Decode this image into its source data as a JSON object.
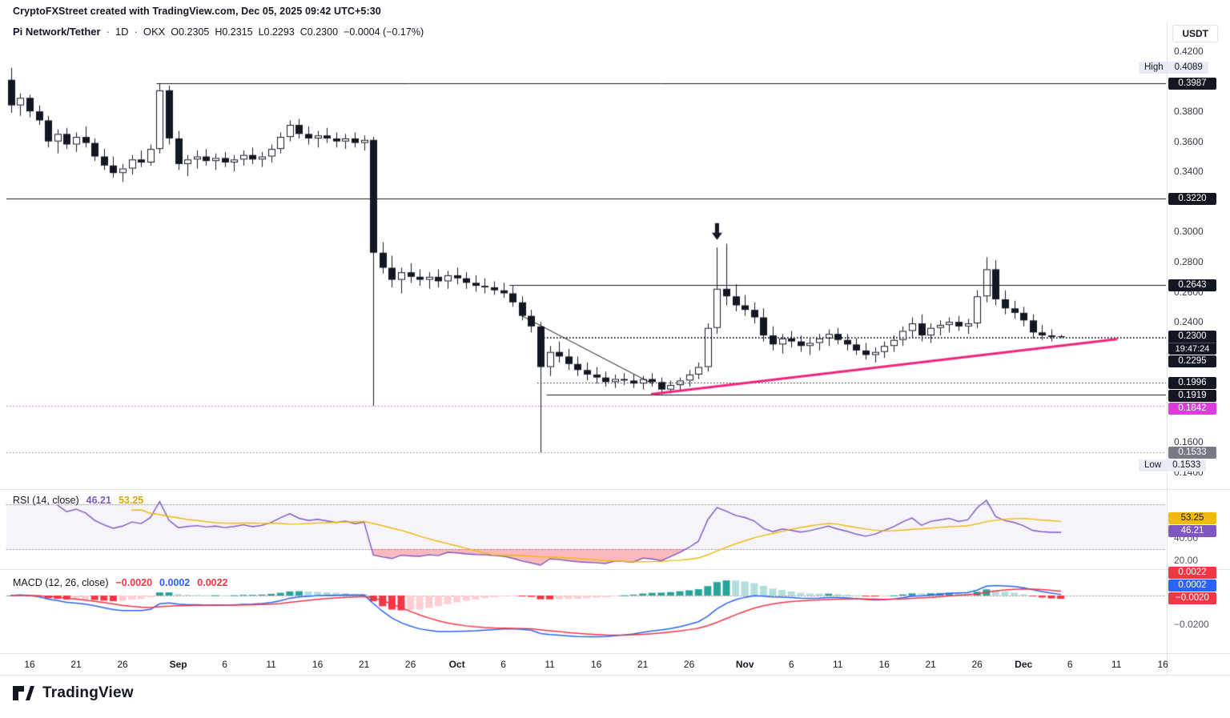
{
  "header": {
    "credit": "CryptoFXStreet created with TradingView.com, Dec 05, 2025 09:42 UTC+5:30"
  },
  "legend": {
    "symbol": "Pi Network/Tether",
    "separator": "·",
    "interval": "1D",
    "exchange": "OKX",
    "open": "O0.2305",
    "high": "H0.2315",
    "low": "L0.2293",
    "close": "C0.2300",
    "change": "−0.0004 (−0.17%)"
  },
  "price_axis": {
    "currency": "USDT",
    "ticks": [
      {
        "label": "0.4200",
        "price": 0.42
      },
      {
        "label": "0.3800",
        "price": 0.38
      },
      {
        "label": "0.3600",
        "price": 0.36
      },
      {
        "label": "0.3400",
        "price": 0.34
      },
      {
        "label": "0.3000",
        "price": 0.3
      },
      {
        "label": "0.2800",
        "price": 0.28
      },
      {
        "label": "0.2600",
        "price": 0.26
      },
      {
        "label": "0.2400",
        "price": 0.24
      },
      {
        "label": "0.1600",
        "price": 0.16
      },
      {
        "label": "0.1400",
        "price": 0.14
      }
    ],
    "badges": [
      {
        "type": "hl",
        "label": "High",
        "value": "0.4089",
        "price": 0.4089,
        "bg": "#e9ecf2",
        "fg": "#131722"
      },
      {
        "type": "level",
        "value": "0.3987",
        "price": 0.3987,
        "bg": "#131722",
        "fg": "#ffffff"
      },
      {
        "type": "level",
        "value": "0.3220",
        "price": 0.322,
        "bg": "#131722",
        "fg": "#ffffff"
      },
      {
        "type": "level",
        "value": "0.2643",
        "price": 0.2643,
        "bg": "#131722",
        "fg": "#ffffff"
      },
      {
        "type": "price",
        "value": "0.2300",
        "countdown": "19:47:24",
        "price": 0.23,
        "bg": "#131722",
        "fg": "#ffffff"
      },
      {
        "type": "level",
        "value": "0.2295",
        "price": 0.2295,
        "bg": "#131722",
        "fg": "#ffffff"
      },
      {
        "type": "level",
        "value": "0.1996",
        "price": 0.1996,
        "bg": "#131722",
        "fg": "#ffffff"
      },
      {
        "type": "level",
        "value": "0.1919",
        "price": 0.1919,
        "bg": "#131722",
        "fg": "#ffffff"
      },
      {
        "type": "level",
        "value": "0.1842",
        "price": 0.1842,
        "bg": "#dc3bde",
        "fg": "#ffffff"
      },
      {
        "type": "level",
        "value": "0.1533",
        "price": 0.1533,
        "bg": "#787b86",
        "fg": "#ffffff"
      },
      {
        "type": "hl",
        "label": "Low",
        "value": "0.1533",
        "price": 0.1533,
        "bg": "#e9ecf2",
        "fg": "#131722"
      }
    ]
  },
  "rsi_pane": {
    "title": "RSI (14, close)",
    "value": "46.21",
    "ma_value": "53.25",
    "ticks": [
      {
        "label": "40.00",
        "v": 40
      },
      {
        "label": "20.00",
        "v": 20
      }
    ],
    "badges": [
      {
        "value": "53.25",
        "v": 53.25,
        "bg": "#f0b90b",
        "fg": "#131722"
      },
      {
        "value": "46.21",
        "v": 46.21,
        "bg": "#7e57c2",
        "fg": "#ffffff"
      }
    ],
    "upper_band": 70,
    "lower_band": 30,
    "line_color": "#7e57c2",
    "ma_color": "#f0b90b"
  },
  "macd_pane": {
    "title": "MACD (12, 26, close)",
    "hist_value": "−0.0020",
    "macd_value": "0.0002",
    "signal_value": "0.0022",
    "ticks": [
      {
        "label": "−0.0200",
        "v": -0.02
      }
    ],
    "badges": [
      {
        "value": "0.0022",
        "v": 0.0022,
        "bg": "#f23645",
        "fg": "#ffffff"
      },
      {
        "value": "0.0002",
        "v": 0.0002,
        "bg": "#2962ff",
        "fg": "#ffffff"
      },
      {
        "value": "−0.0020",
        "v": -0.002,
        "bg": "#f23645",
        "fg": "#ffffff"
      }
    ],
    "macd_color": "#2962ff",
    "signal_color": "#f23645",
    "hist_colors": {
      "up_grow": "#26a69a",
      "up_fall": "#b2dfdb",
      "down_grow": "#ffcdd2",
      "down_fall": "#f23645"
    }
  },
  "time_axis": [
    {
      "label": "16",
      "i": 2
    },
    {
      "label": "21",
      "i": 7
    },
    {
      "label": "26",
      "i": 12
    },
    {
      "label": "Sep",
      "i": 18,
      "month": true
    },
    {
      "label": "6",
      "i": 23
    },
    {
      "label": "11",
      "i": 28
    },
    {
      "label": "16",
      "i": 33
    },
    {
      "label": "21",
      "i": 38
    },
    {
      "label": "26",
      "i": 43
    },
    {
      "label": "Oct",
      "i": 48,
      "month": true
    },
    {
      "label": "6",
      "i": 53
    },
    {
      "label": "11",
      "i": 58
    },
    {
      "label": "16",
      "i": 63
    },
    {
      "label": "21",
      "i": 68
    },
    {
      "label": "26",
      "i": 73
    },
    {
      "label": "Nov",
      "i": 79,
      "month": true
    },
    {
      "label": "6",
      "i": 84
    },
    {
      "label": "11",
      "i": 89
    },
    {
      "label": "16",
      "i": 94
    },
    {
      "label": "21",
      "i": 99
    },
    {
      "label": "26",
      "i": 104
    },
    {
      "label": "Dec",
      "i": 109,
      "month": true
    },
    {
      "label": "6",
      "i": 114
    },
    {
      "label": "11",
      "i": 119
    },
    {
      "label": "16",
      "i": 124
    }
  ],
  "footer": {
    "logo_text": "TradingView"
  },
  "chart_data": {
    "type": "candlestick",
    "symbol": "PIUSDT",
    "timeframe": "1D",
    "start_date": "2025-08-14",
    "session_high": 0.4089,
    "session_low": 0.1533,
    "ylim": [
      0.132,
      0.425
    ],
    "up_color": "#ffffff",
    "down_color": "#131722",
    "border_color": "#131722",
    "ohlc": [
      [
        0.401,
        0.4089,
        0.379,
        0.384
      ],
      [
        0.384,
        0.392,
        0.377,
        0.389
      ],
      [
        0.389,
        0.391,
        0.376,
        0.38
      ],
      [
        0.38,
        0.384,
        0.371,
        0.374
      ],
      [
        0.374,
        0.377,
        0.356,
        0.36
      ],
      [
        0.36,
        0.368,
        0.352,
        0.365
      ],
      [
        0.365,
        0.369,
        0.355,
        0.358
      ],
      [
        0.358,
        0.366,
        0.353,
        0.363
      ],
      [
        0.363,
        0.37,
        0.356,
        0.359
      ],
      [
        0.359,
        0.362,
        0.347,
        0.35
      ],
      [
        0.35,
        0.355,
        0.341,
        0.344
      ],
      [
        0.344,
        0.35,
        0.336,
        0.339
      ],
      [
        0.339,
        0.345,
        0.333,
        0.342
      ],
      [
        0.342,
        0.351,
        0.338,
        0.348
      ],
      [
        0.348,
        0.354,
        0.343,
        0.346
      ],
      [
        0.346,
        0.358,
        0.344,
        0.355
      ],
      [
        0.355,
        0.3987,
        0.352,
        0.394
      ],
      [
        0.394,
        0.397,
        0.358,
        0.362
      ],
      [
        0.362,
        0.367,
        0.341,
        0.345
      ],
      [
        0.345,
        0.351,
        0.337,
        0.348
      ],
      [
        0.348,
        0.354,
        0.342,
        0.35
      ],
      [
        0.35,
        0.355,
        0.344,
        0.347
      ],
      [
        0.347,
        0.352,
        0.341,
        0.349
      ],
      [
        0.349,
        0.353,
        0.343,
        0.346
      ],
      [
        0.346,
        0.351,
        0.34,
        0.348
      ],
      [
        0.348,
        0.354,
        0.344,
        0.351
      ],
      [
        0.351,
        0.356,
        0.345,
        0.348
      ],
      [
        0.348,
        0.353,
        0.343,
        0.35
      ],
      [
        0.35,
        0.358,
        0.346,
        0.355
      ],
      [
        0.355,
        0.366,
        0.352,
        0.363
      ],
      [
        0.363,
        0.374,
        0.36,
        0.371
      ],
      [
        0.371,
        0.375,
        0.362,
        0.365
      ],
      [
        0.365,
        0.37,
        0.358,
        0.362
      ],
      [
        0.362,
        0.367,
        0.356,
        0.364
      ],
      [
        0.364,
        0.369,
        0.359,
        0.362
      ],
      [
        0.362,
        0.366,
        0.356,
        0.36
      ],
      [
        0.36,
        0.365,
        0.355,
        0.362
      ],
      [
        0.362,
        0.366,
        0.356,
        0.359
      ],
      [
        0.359,
        0.364,
        0.354,
        0.361
      ],
      [
        0.361,
        0.363,
        0.1842,
        0.286
      ],
      [
        0.286,
        0.293,
        0.272,
        0.276
      ],
      [
        0.276,
        0.284,
        0.263,
        0.268
      ],
      [
        0.268,
        0.276,
        0.259,
        0.273
      ],
      [
        0.273,
        0.279,
        0.266,
        0.27
      ],
      [
        0.27,
        0.275,
        0.264,
        0.268
      ],
      [
        0.268,
        0.273,
        0.262,
        0.27
      ],
      [
        0.27,
        0.275,
        0.263,
        0.267
      ],
      [
        0.267,
        0.274,
        0.262,
        0.271
      ],
      [
        0.271,
        0.276,
        0.265,
        0.269
      ],
      [
        0.269,
        0.273,
        0.262,
        0.266
      ],
      [
        0.266,
        0.271,
        0.26,
        0.264
      ],
      [
        0.264,
        0.269,
        0.259,
        0.263
      ],
      [
        0.263,
        0.267,
        0.258,
        0.261
      ],
      [
        0.261,
        0.266,
        0.256,
        0.259
      ],
      [
        0.259,
        0.2643,
        0.25,
        0.253
      ],
      [
        0.253,
        0.257,
        0.241,
        0.244
      ],
      [
        0.244,
        0.248,
        0.233,
        0.237
      ],
      [
        0.237,
        0.24,
        0.1533,
        0.21
      ],
      [
        0.21,
        0.224,
        0.204,
        0.22
      ],
      [
        0.22,
        0.227,
        0.213,
        0.217
      ],
      [
        0.217,
        0.222,
        0.208,
        0.212
      ],
      [
        0.212,
        0.217,
        0.204,
        0.208
      ],
      [
        0.208,
        0.213,
        0.201,
        0.205
      ],
      [
        0.205,
        0.21,
        0.199,
        0.203
      ],
      [
        0.203,
        0.207,
        0.197,
        0.2
      ],
      [
        0.2,
        0.205,
        0.196,
        0.202
      ],
      [
        0.202,
        0.206,
        0.198,
        0.201
      ],
      [
        0.201,
        0.205,
        0.196,
        0.199
      ],
      [
        0.199,
        0.204,
        0.195,
        0.202
      ],
      [
        0.202,
        0.206,
        0.197,
        0.2
      ],
      [
        0.2,
        0.203,
        0.1919,
        0.195
      ],
      [
        0.195,
        0.201,
        0.1925,
        0.198
      ],
      [
        0.198,
        0.203,
        0.194,
        0.201
      ],
      [
        0.201,
        0.208,
        0.197,
        0.205
      ],
      [
        0.205,
        0.213,
        0.202,
        0.21
      ],
      [
        0.21,
        0.239,
        0.207,
        0.236
      ],
      [
        0.236,
        0.2895,
        0.232,
        0.262
      ],
      [
        0.262,
        0.292,
        0.251,
        0.257
      ],
      [
        0.257,
        0.265,
        0.247,
        0.251
      ],
      [
        0.251,
        0.258,
        0.244,
        0.248
      ],
      [
        0.248,
        0.253,
        0.239,
        0.243
      ],
      [
        0.243,
        0.249,
        0.227,
        0.231
      ],
      [
        0.231,
        0.237,
        0.221,
        0.225
      ],
      [
        0.225,
        0.232,
        0.219,
        0.229
      ],
      [
        0.229,
        0.234,
        0.223,
        0.227
      ],
      [
        0.227,
        0.231,
        0.22,
        0.224
      ],
      [
        0.224,
        0.229,
        0.218,
        0.226
      ],
      [
        0.226,
        0.232,
        0.221,
        0.229
      ],
      [
        0.229,
        0.235,
        0.224,
        0.232
      ],
      [
        0.232,
        0.236,
        0.225,
        0.228
      ],
      [
        0.228,
        0.232,
        0.221,
        0.225
      ],
      [
        0.225,
        0.229,
        0.218,
        0.221
      ],
      [
        0.221,
        0.226,
        0.215,
        0.218
      ],
      [
        0.218,
        0.223,
        0.213,
        0.22
      ],
      [
        0.22,
        0.227,
        0.216,
        0.224
      ],
      [
        0.224,
        0.231,
        0.22,
        0.228
      ],
      [
        0.228,
        0.237,
        0.224,
        0.234
      ],
      [
        0.234,
        0.243,
        0.229,
        0.239
      ],
      [
        0.239,
        0.245,
        0.227,
        0.231
      ],
      [
        0.231,
        0.239,
        0.226,
        0.236
      ],
      [
        0.236,
        0.241,
        0.231,
        0.238
      ],
      [
        0.238,
        0.243,
        0.233,
        0.24
      ],
      [
        0.24,
        0.244,
        0.234,
        0.237
      ],
      [
        0.237,
        0.242,
        0.232,
        0.239
      ],
      [
        0.239,
        0.261,
        0.236,
        0.257
      ],
      [
        0.257,
        0.283,
        0.253,
        0.275
      ],
      [
        0.275,
        0.281,
        0.251,
        0.255
      ],
      [
        0.255,
        0.261,
        0.245,
        0.249
      ],
      [
        0.249,
        0.254,
        0.242,
        0.246
      ],
      [
        0.246,
        0.25,
        0.237,
        0.241
      ],
      [
        0.241,
        0.245,
        0.229,
        0.233
      ],
      [
        0.233,
        0.238,
        0.228,
        0.231
      ],
      [
        0.231,
        0.235,
        0.227,
        0.23
      ],
      [
        0.2305,
        0.2315,
        0.2293,
        0.23
      ]
    ],
    "levels": [
      {
        "price": 0.3987,
        "from_i": 16,
        "style": "solid",
        "color": "#131722",
        "width": 1
      },
      {
        "price": 0.322,
        "from_i": 0,
        "style": "solid",
        "color": "#131722",
        "width": 1
      },
      {
        "price": 0.2643,
        "from_i": 54,
        "style": "solid",
        "color": "#131722",
        "width": 1
      },
      {
        "price": 0.1919,
        "from_i": 58,
        "style": "solid",
        "color": "#131722",
        "width": 1
      },
      {
        "price": 0.23,
        "from_i": 57,
        "style": "dotted",
        "color": "#131722",
        "width": 1
      },
      {
        "price": 0.2295,
        "from_i": 57,
        "style": "dotted",
        "color": "#131722",
        "width": 1
      },
      {
        "price": 0.1996,
        "from_i": 57,
        "style": "dotted",
        "color": "#131722",
        "width": 1
      },
      {
        "price": 0.1842,
        "from_i": 0,
        "style": "dotted",
        "color": "#dc3bde",
        "width": 1
      },
      {
        "price": 0.1533,
        "from_i": 0,
        "style": "dotted",
        "color": "#787b86",
        "width": 1
      }
    ],
    "trendlines": [
      {
        "from_i": 55,
        "from_price": 0.244,
        "to_i": 69,
        "to_price": 0.199,
        "color": "#131722",
        "width": 1
      },
      {
        "from_i": 69,
        "from_price": 0.192,
        "to_i": 119,
        "to_price": 0.2285,
        "color": "#f0257c",
        "width": 3
      }
    ],
    "arrow_marker": {
      "i": 76,
      "price": 0.2945,
      "direction": "down"
    },
    "indicators": {
      "rsi_period": 14,
      "rsi_ma_period": 14,
      "macd": [
        12,
        26,
        9
      ]
    }
  }
}
